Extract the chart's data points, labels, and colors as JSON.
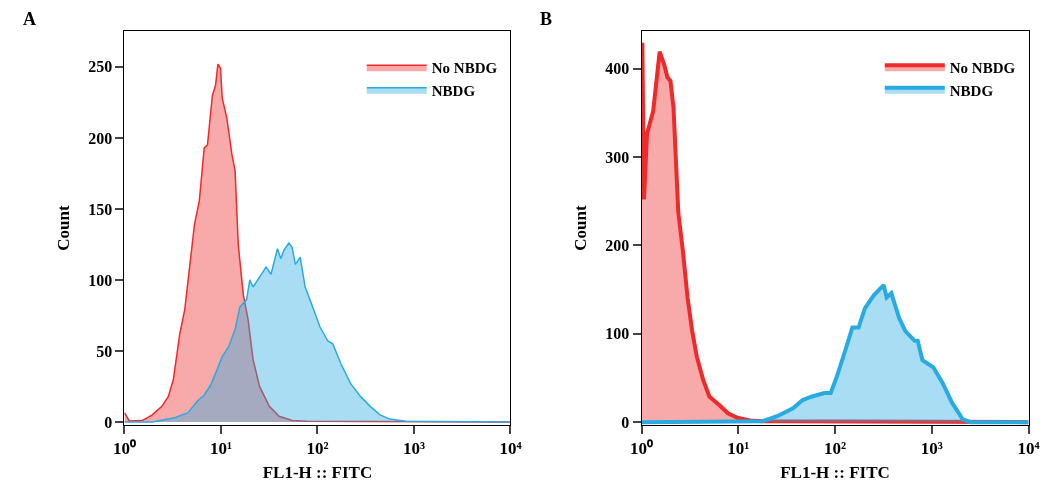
{
  "chart_data": [
    {
      "type": "area",
      "title": "A",
      "xlabel": "FL1-H :: FITC",
      "ylabel": "Count",
      "log": "x",
      "legend": "top right",
      "xlim": [
        1,
        10000
      ],
      "xticks": [
        {
          "value": 1,
          "label": "10⁰"
        },
        {
          "value": 10,
          "label": "10¹"
        },
        {
          "value": 100,
          "label": "10²"
        },
        {
          "value": 1000,
          "label": "10³"
        },
        {
          "value": 10000,
          "label": "10⁴"
        }
      ],
      "ylim": [
        -2,
        275
      ],
      "yticks": [
        0,
        50,
        100,
        150,
        200,
        250
      ],
      "series": [
        {
          "name": "No NBDG",
          "color": "#ee2a2a",
          "x": [
            1,
            1.12,
            1.53,
            1.94,
            2.44,
            2.85,
            3.21,
            3.74,
            4.21,
            4.73,
            5.31,
            5.97,
            6.7,
            7.24,
            8.15,
            8.79,
            9.29,
            9.89,
            10.3,
            11.5,
            13.0,
            14.0,
            15.1,
            17.0,
            19.1,
            21.5,
            25.1,
            31.7,
            40.0,
            54.6,
            77.4,
            10000
          ],
          "values": [
            6.5,
            0.7,
            1,
            5,
            11,
            18,
            30,
            62,
            79,
            109,
            139,
            156,
            193,
            195,
            230,
            237,
            252,
            249,
            228,
            214,
            188,
            177,
            125,
            90,
            72,
            44,
            25,
            11,
            4,
            1,
            0.5,
            0
          ]
        },
        {
          "name": "NBDG",
          "color": "#29abe2",
          "x": [
            1,
            1.94,
            3.33,
            4.55,
            5.74,
            6.7,
            7.83,
            9.14,
            10.3,
            12.0,
            14.0,
            15.7,
            18.4,
            19.9,
            21.5,
            25.1,
            29.3,
            33.0,
            38.5,
            41.6,
            45.0,
            50.5,
            54.6,
            59.0,
            66.2,
            74.5,
            86.9,
            106,
            128,
            144,
            175,
            221,
            279,
            352,
            445,
            561,
            826,
            10000
          ],
          "values": [
            0,
            0,
            3,
            6.5,
            15,
            19,
            26,
            37,
            46,
            53,
            65,
            81,
            86,
            100,
            95,
            102,
            109,
            104,
            122,
            115,
            121,
            126,
            123,
            111,
            116,
            95,
            83,
            67,
            57,
            55,
            41,
            27,
            18,
            11,
            5,
            2,
            0.5,
            0
          ]
        }
      ]
    },
    {
      "type": "area",
      "title": "B",
      "xlabel": "FL1-H :: FITC",
      "ylabel": "Count",
      "log": "x",
      "legend": "top right",
      "xlim": [
        1,
        10000
      ],
      "xticks": [
        {
          "value": 1,
          "label": "10⁰"
        },
        {
          "value": 10,
          "label": "10¹"
        },
        {
          "value": 100,
          "label": "10²"
        },
        {
          "value": 1000,
          "label": "10³"
        },
        {
          "value": 10000,
          "label": "10⁴"
        }
      ],
      "ylim": [
        -3,
        442
      ],
      "yticks": [
        0,
        100,
        200,
        300,
        400
      ],
      "series": [
        {
          "name": "No NBDG",
          "color": "#ee2a2a",
          "x": [
            1,
            1.02,
            1.06,
            1.14,
            1.32,
            1.54,
            1.72,
            1.85,
            1.99,
            2.14,
            2.4,
            2.68,
            2.99,
            3.34,
            3.73,
            4.33,
            5.02,
            6.27,
            7.83,
            9.78,
            13.2,
            17.7,
            10000
          ],
          "values": [
            427,
            427,
            252,
            326,
            352,
            419,
            404,
            390,
            386,
            356,
            237,
            193,
            141,
            103,
            74,
            48,
            29,
            20,
            10,
            5,
            2,
            1,
            0
          ]
        },
        {
          "name": "NBDG",
          "color": "#29abe2",
          "x": [
            1,
            17.7,
            25.6,
            37.1,
            46.3,
            57.8,
            77.8,
            90.2,
            104,
            131,
            151,
            175,
            204,
            254,
            318,
            342,
            382,
            459,
            533,
            665,
            716,
            801,
            1038,
            1297,
            1618,
            2099,
            2523,
            10000
          ],
          "values": [
            0,
            1,
            7,
            16,
            25,
            29,
            33,
            33,
            51,
            85,
            107,
            107,
            129,
            144,
            155,
            141,
            146,
            118,
            103,
            92,
            92,
            70,
            62,
            44,
            22,
            3,
            0,
            0
          ]
        }
      ]
    }
  ]
}
